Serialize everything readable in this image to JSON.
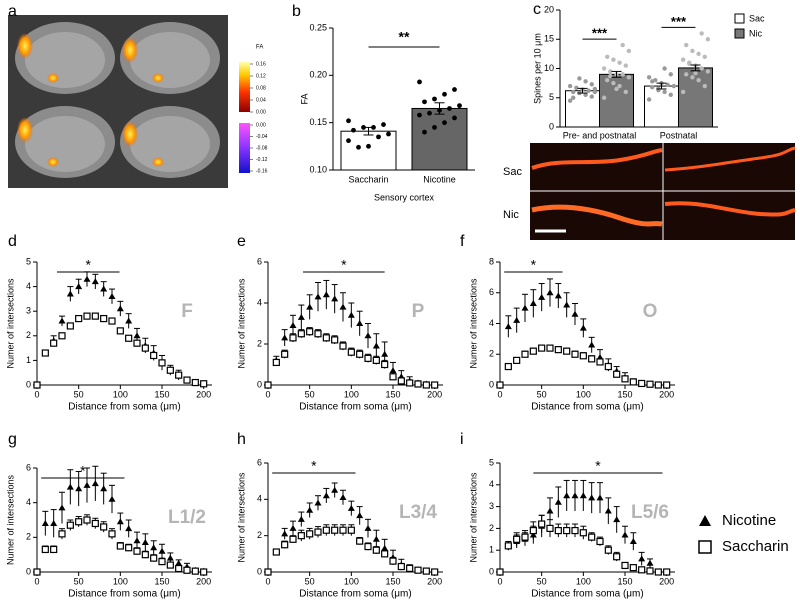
{
  "chart_data": [
    {
      "type": "image",
      "label": "a",
      "colorbar": {
        "title": "FA",
        "ticks": [
          0.16,
          0.12,
          0.08,
          0.04,
          {
            "value": 0,
            "label": "0.00"
          },
          {
            "value": 0,
            "label": "0.00"
          },
          -0.04,
          -0.08,
          -0.12,
          -0.16
        ]
      }
    },
    {
      "type": "bar",
      "label": "b",
      "ylabel": "FA",
      "xlabel": "Sensory cortex",
      "categories": [
        "Saccharin",
        "Nicotine"
      ],
      "values": [
        0.141,
        0.165
      ],
      "errors": [
        0.004,
        0.006
      ],
      "colors": [
        "#ffffff",
        "#666666"
      ],
      "points": [
        [
          0.152,
          0.148,
          0.145,
          0.145,
          0.142,
          0.138,
          0.135,
          0.125,
          0.124,
          0.131
        ],
        [
          0.193,
          0.185,
          0.18,
          0.175,
          0.172,
          0.168,
          0.165,
          0.163,
          0.16,
          0.158,
          0.155,
          0.15,
          0.145,
          0.14
        ]
      ],
      "ylim": [
        0.1,
        0.25
      ],
      "yticks": [
        {
          "value": 0.1,
          "label": "0.10"
        },
        0.15,
        {
          "value": 0.2,
          "label": "0.20"
        },
        0.25
      ],
      "significance": "**"
    },
    {
      "type": "bar",
      "label": "c",
      "ylabel": "Spines per 10 μm",
      "categories": [
        "Pre- and postnatal",
        "Postnatal"
      ],
      "series": [
        {
          "name": "Sac",
          "color": "#ffffff",
          "values": [
            6.2,
            7.0
          ],
          "errors": [
            0.4,
            0.5
          ],
          "points": [
            [
              4.5,
              5.2,
              5.5,
              5.8,
              6,
              6,
              6.2,
              6.4,
              6.7,
              7,
              7.3,
              7.8,
              8.3,
              5,
              6.5
            ],
            [
              4.7,
              5.5,
              6,
              6.3,
              6.8,
              7,
              7.2,
              7.5,
              8,
              8.5,
              9,
              10,
              6.6,
              7.8
            ]
          ]
        },
        {
          "name": "Nic",
          "color": "#777777",
          "values": [
            9.0,
            10.1
          ],
          "errors": [
            0.5,
            0.5
          ],
          "points": [
            [
              5,
              6,
              7,
              7.5,
              8,
              8.5,
              9,
              9,
              9.5,
              10,
              10.5,
              11,
              11.5,
              12,
              13,
              14,
              6.5,
              8.7
            ],
            [
              6,
              7,
              8,
              8.5,
              9,
              9.5,
              10,
              10.5,
              11,
              11.5,
              12,
              12.5,
              13,
              14,
              15,
              16,
              9.2,
              10.8
            ]
          ]
        }
      ],
      "ylim": [
        0,
        20
      ],
      "yticks": [
        0,
        5,
        10,
        15,
        20
      ],
      "significance": [
        "***",
        "***"
      ],
      "image_labels": [
        "Sac",
        "Nic"
      ]
    },
    {
      "type": "scatter",
      "label": "d",
      "region": "F",
      "xlabel": "Distance from soma (μm)",
      "ylabel": "Numer of intersections",
      "x": [
        0,
        10,
        20,
        30,
        40,
        50,
        60,
        70,
        80,
        90,
        100,
        110,
        120,
        130,
        140,
        150,
        160,
        170,
        180,
        190,
        200
      ],
      "series": [
        {
          "marker": "triangle",
          "color": "#000000",
          "values": [
            0,
            1.3,
            1.8,
            2.6,
            3.7,
            4.0,
            4.3,
            4.2,
            3.9,
            3.6,
            3.1,
            2.6,
            2.0,
            1.6,
            1.3,
            0.9,
            0.6,
            0.4,
            0.2,
            0.1,
            0.05
          ],
          "errors": [
            0,
            0.1,
            0.2,
            0.2,
            0.3,
            0.3,
            0.3,
            0.3,
            0.3,
            0.3,
            0.3,
            0.3,
            0.3,
            0.3,
            0.3,
            0.3,
            0.2,
            0.2,
            0.1,
            0.1,
            0.05
          ]
        },
        {
          "marker": "square",
          "color": "#000000",
          "values": [
            0,
            1.3,
            1.7,
            2.0,
            2.4,
            2.7,
            2.8,
            2.8,
            2.7,
            2.6,
            2.2,
            1.9,
            1.7,
            1.5,
            1.2,
            0.9,
            0.6,
            0.4,
            0.2,
            0.1,
            0.05
          ],
          "errors": [
            0,
            0.1,
            0.1,
            0.1,
            0.1,
            0.1,
            0.1,
            0.1,
            0.1,
            0.1,
            0.1,
            0.1,
            0.1,
            0.1,
            0.1,
            0.1,
            0.1,
            0.05,
            0.05,
            0.05,
            0
          ]
        }
      ],
      "xlim": [
        0,
        210
      ],
      "ylim": [
        0,
        5
      ],
      "xticks": [
        0,
        50,
        100,
        150,
        200
      ],
      "yticks": [
        0,
        1,
        2,
        3,
        4,
        5
      ],
      "significance": "*"
    },
    {
      "type": "scatter",
      "label": "e",
      "region": "P",
      "xlabel": "Distance from soma (μm)",
      "ylabel": "Numer of intersections",
      "x": [
        0,
        10,
        20,
        30,
        40,
        50,
        60,
        70,
        80,
        90,
        100,
        110,
        120,
        130,
        140,
        150,
        160,
        170,
        180,
        190,
        200
      ],
      "series": [
        {
          "marker": "triangle",
          "color": "#000000",
          "values": [
            0,
            1.2,
            2.3,
            2.9,
            3.3,
            3.8,
            4.3,
            4.4,
            4.2,
            3.8,
            3.4,
            3.0,
            2.4,
            1.9,
            1.5,
            0.7,
            0.4,
            0.2,
            0.1,
            0.05,
            0
          ],
          "errors": [
            0,
            0.2,
            0.4,
            0.5,
            0.6,
            0.6,
            0.7,
            0.7,
            0.7,
            0.7,
            0.6,
            0.6,
            0.6,
            0.6,
            0.6,
            0.4,
            0.3,
            0.2,
            0.1,
            0.1,
            0
          ]
        },
        {
          "marker": "square",
          "color": "#000000",
          "values": [
            0,
            1.1,
            1.5,
            2.3,
            2.5,
            2.6,
            2.5,
            2.3,
            2.2,
            1.9,
            1.6,
            1.5,
            1.3,
            1.2,
            1.0,
            0.4,
            0.2,
            0.1,
            0.05,
            0,
            0
          ],
          "errors": [
            0,
            0.1,
            0.2,
            0.2,
            0.2,
            0.2,
            0.2,
            0.2,
            0.2,
            0.2,
            0.2,
            0.2,
            0.2,
            0.2,
            0.2,
            0.1,
            0.1,
            0.05,
            0.05,
            0,
            0
          ]
        }
      ],
      "xlim": [
        0,
        210
      ],
      "ylim": [
        0,
        6
      ],
      "xticks": [
        0,
        50,
        100,
        150,
        200
      ],
      "yticks": [
        0,
        2,
        4,
        6
      ],
      "significance": "*"
    },
    {
      "type": "scatter",
      "label": "f",
      "region": "O",
      "xlabel": "Distance from soma (μm)",
      "ylabel": "Numer of intersections",
      "x": [
        0,
        10,
        20,
        30,
        40,
        50,
        60,
        70,
        80,
        90,
        100,
        110,
        120,
        130,
        140,
        150,
        160,
        170,
        180,
        190,
        200
      ],
      "series": [
        {
          "marker": "triangle",
          "color": "#000000",
          "values": [
            0,
            3.8,
            4.2,
            5.0,
            5.3,
            5.7,
            6.0,
            5.8,
            5.2,
            4.6,
            3.7,
            2.6,
            1.8,
            1.3,
            0.9,
            0.5,
            0.2,
            0.1,
            0.05,
            0,
            0
          ],
          "errors": [
            0,
            0.7,
            0.8,
            0.9,
            0.9,
            0.9,
            0.9,
            0.8,
            0.8,
            0.7,
            0.6,
            0.5,
            0.5,
            0.4,
            0.3,
            0.3,
            0.2,
            0.1,
            0.05,
            0,
            0
          ]
        },
        {
          "marker": "square",
          "color": "#000000",
          "values": [
            0,
            1.2,
            1.6,
            2.0,
            2.2,
            2.4,
            2.4,
            2.3,
            2.2,
            2.0,
            1.9,
            1.7,
            1.5,
            1.2,
            0.7,
            0.4,
            0.2,
            0.1,
            0.05,
            0,
            0
          ],
          "errors": [
            0,
            0.1,
            0.15,
            0.2,
            0.2,
            0.2,
            0.2,
            0.2,
            0.2,
            0.2,
            0.2,
            0.2,
            0.15,
            0.15,
            0.1,
            0.1,
            0.05,
            0.05,
            0,
            0,
            0
          ]
        }
      ],
      "xlim": [
        0,
        210
      ],
      "ylim": [
        0,
        8
      ],
      "xticks": [
        0,
        50,
        100,
        150,
        200
      ],
      "yticks": [
        0,
        2,
        4,
        6,
        8
      ],
      "significance": "*"
    },
    {
      "type": "scatter",
      "label": "g",
      "region": "L1/2",
      "xlabel": "Distance from soma (μm)",
      "ylabel": "Numer of intersections",
      "x": [
        0,
        10,
        20,
        30,
        40,
        50,
        60,
        70,
        80,
        90,
        100,
        110,
        120,
        130,
        140,
        150,
        160,
        170,
        180,
        190,
        200
      ],
      "series": [
        {
          "marker": "triangle",
          "color": "#000000",
          "values": [
            0,
            2.8,
            2.8,
            3.7,
            4.9,
            4.8,
            5.0,
            5.1,
            4.8,
            4.2,
            2.9,
            2.5,
            1.8,
            1.7,
            1.4,
            1.2,
            0.8,
            0.5,
            0.3,
            0.1,
            0.05
          ],
          "errors": [
            0,
            0.7,
            0.8,
            0.9,
            1.0,
            1.0,
            1.0,
            1.0,
            0.9,
            0.8,
            0.5,
            0.5,
            0.5,
            0.5,
            0.4,
            0.4,
            0.3,
            0.2,
            0.2,
            0.1,
            0.05
          ]
        },
        {
          "marker": "square",
          "color": "#000000",
          "values": [
            0,
            1.3,
            1.3,
            2.2,
            2.7,
            2.9,
            3.0,
            2.8,
            2.6,
            2.2,
            1.5,
            1.4,
            1.2,
            1.0,
            0.8,
            0.6,
            0.4,
            0.2,
            0.1,
            0.05,
            0
          ],
          "errors": [
            0,
            0.2,
            0.2,
            0.3,
            0.3,
            0.3,
            0.3,
            0.3,
            0.3,
            0.3,
            0.2,
            0.2,
            0.2,
            0.2,
            0.2,
            0.2,
            0.1,
            0.1,
            0.05,
            0.05,
            0
          ]
        }
      ],
      "xlim": [
        0,
        210
      ],
      "ylim": [
        0,
        6
      ],
      "xticks": [
        0,
        50,
        100,
        150,
        200
      ],
      "yticks": [
        0,
        2,
        4,
        6
      ],
      "significance": "*"
    },
    {
      "type": "scatter",
      "label": "h",
      "region": "L3/4",
      "xlabel": "Distance from soma (μm)",
      "ylabel": "Numer of intersections",
      "x": [
        0,
        10,
        20,
        30,
        40,
        50,
        60,
        70,
        80,
        90,
        100,
        110,
        120,
        130,
        140,
        150,
        160,
        170,
        180,
        190,
        200
      ],
      "series": [
        {
          "marker": "triangle",
          "color": "#000000",
          "values": [
            0,
            1.1,
            2.1,
            2.4,
            2.9,
            3.4,
            3.8,
            4.2,
            4.5,
            4.1,
            3.5,
            3.1,
            2.4,
            1.8,
            1.3,
            0.8,
            0.4,
            0.2,
            0.1,
            0.05,
            0
          ],
          "errors": [
            0,
            0.1,
            0.3,
            0.4,
            0.4,
            0.4,
            0.4,
            0.4,
            0.4,
            0.4,
            0.4,
            0.5,
            0.5,
            0.5,
            0.5,
            0.4,
            0.3,
            0.2,
            0.1,
            0.05,
            0
          ]
        },
        {
          "marker": "square",
          "color": "#000000",
          "values": [
            0,
            1.1,
            1.5,
            1.8,
            2.0,
            2.1,
            2.2,
            2.3,
            2.3,
            2.3,
            2.3,
            1.7,
            1.4,
            1.2,
            1.0,
            0.6,
            0.3,
            0.2,
            0.1,
            0.05,
            0
          ],
          "errors": [
            0,
            0.1,
            0.2,
            0.2,
            0.3,
            0.3,
            0.3,
            0.3,
            0.3,
            0.3,
            0.3,
            0.2,
            0.2,
            0.2,
            0.2,
            0.2,
            0.1,
            0.1,
            0.05,
            0.05,
            0
          ]
        }
      ],
      "xlim": [
        0,
        210
      ],
      "ylim": [
        0,
        6
      ],
      "xticks": [
        0,
        50,
        100,
        150,
        200
      ],
      "yticks": [
        0,
        2,
        4,
        6
      ],
      "significance": "*"
    },
    {
      "type": "scatter",
      "label": "i",
      "region": "L5/6",
      "xlabel": "Distance from soma (μm)",
      "ylabel": "Numer of intersections",
      "x": [
        0,
        10,
        20,
        30,
        40,
        50,
        60,
        70,
        80,
        90,
        100,
        110,
        120,
        130,
        140,
        150,
        160,
        170,
        180,
        190,
        200
      ],
      "series": [
        {
          "name": "Nicotine",
          "marker": "triangle",
          "color": "#000000",
          "values": [
            0,
            1.2,
            1.4,
            1.5,
            1.7,
            2.1,
            2.8,
            3.2,
            3.5,
            3.5,
            3.5,
            3.4,
            3.4,
            2.8,
            2.4,
            1.7,
            1.4,
            0.6,
            0.4,
            0,
            0
          ],
          "errors": [
            0,
            0.2,
            0.3,
            0.3,
            0.4,
            0.5,
            0.6,
            0.7,
            0.7,
            0.7,
            0.7,
            0.7,
            0.7,
            0.6,
            0.6,
            0.4,
            0.4,
            0.3,
            0.2,
            0,
            0
          ]
        },
        {
          "name": "Saccharin",
          "marker": "square",
          "color": "#000000",
          "values": [
            0,
            1.2,
            1.5,
            1.6,
            1.9,
            2.2,
            2.0,
            1.9,
            1.9,
            1.9,
            1.8,
            1.6,
            1.4,
            1.0,
            0.7,
            0.3,
            0.2,
            0.1,
            0.05,
            0,
            0
          ],
          "errors": [
            0,
            0.2,
            0.3,
            0.3,
            0.4,
            0.4,
            0.4,
            0.3,
            0.3,
            0.3,
            0.3,
            0.2,
            0.2,
            0.2,
            0.2,
            0.1,
            0.1,
            0.05,
            0.05,
            0,
            0
          ]
        }
      ],
      "xlim": [
        0,
        210
      ],
      "ylim": [
        0,
        5
      ],
      "xticks": [
        0,
        50,
        100,
        150,
        200
      ],
      "yticks": [
        0,
        1,
        2,
        3,
        4,
        5
      ],
      "significance": "*"
    }
  ]
}
